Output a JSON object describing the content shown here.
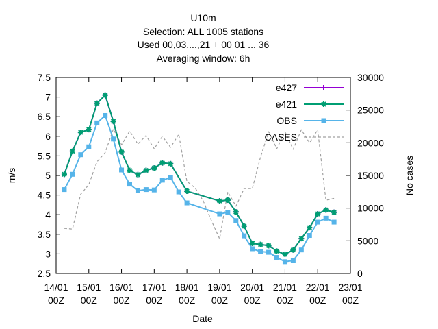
{
  "chart_data": {
    "type": "line",
    "title_lines": [
      "U10m",
      "Selection: ALL   1005 stations",
      "Used  00,03,...,21  + 00 01 ... 36",
      "Averaging window:  6h"
    ],
    "xlabel": "Date",
    "ylabel": "m/s",
    "y2label": "No cases",
    "xlim": [
      0,
      9
    ],
    "ylim": [
      2.5,
      7.5
    ],
    "y2lim": [
      0,
      30000
    ],
    "x_ticks": [
      {
        "x": 0,
        "l1": "14/01",
        "l2": "00Z"
      },
      {
        "x": 1,
        "l1": "15/01",
        "l2": "00Z"
      },
      {
        "x": 2,
        "l1": "16/01",
        "l2": "00Z"
      },
      {
        "x": 3,
        "l1": "17/01",
        "l2": "00Z"
      },
      {
        "x": 4,
        "l1": "18/01",
        "l2": "00Z"
      },
      {
        "x": 5,
        "l1": "19/01",
        "l2": "00Z"
      },
      {
        "x": 6,
        "l1": "20/01",
        "l2": "00Z"
      },
      {
        "x": 7,
        "l1": "21/01",
        "l2": "00Z"
      },
      {
        "x": 8,
        "l1": "22/01",
        "l2": "00Z"
      },
      {
        "x": 9,
        "l1": "23/01",
        "l2": "00Z"
      }
    ],
    "y_ticks": [
      {
        "v": 2.5,
        "label": "2.5"
      },
      {
        "v": 3,
        "label": "3"
      },
      {
        "v": 3.5,
        "label": "3.5"
      },
      {
        "v": 4,
        "label": "4"
      },
      {
        "v": 4.5,
        "label": "4.5"
      },
      {
        "v": 5,
        "label": "5"
      },
      {
        "v": 5.5,
        "label": "5.5"
      },
      {
        "v": 6,
        "label": "6"
      },
      {
        "v": 6.5,
        "label": "6.5"
      },
      {
        "v": 7,
        "label": "7"
      },
      {
        "v": 7.5,
        "label": "7.5"
      }
    ],
    "y2_ticks": [
      {
        "v": 0,
        "label": "0"
      },
      {
        "v": 5000,
        "label": "5000"
      },
      {
        "v": 10000,
        "label": "10000"
      },
      {
        "v": 15000,
        "label": "15000"
      },
      {
        "v": 20000,
        "label": "20000"
      },
      {
        "v": 25000,
        "label": "25000"
      },
      {
        "v": 30000,
        "label": "30000"
      }
    ],
    "legend_position": "top-right",
    "series": [
      {
        "name": "e427",
        "axis": "y",
        "color": "#9400d3",
        "style": "solid",
        "marker": "plus",
        "points": [
          [
            0.25,
            5.03
          ],
          [
            0.5,
            5.62
          ],
          [
            0.75,
            6.1
          ],
          [
            1.0,
            6.17
          ],
          [
            1.25,
            6.84
          ],
          [
            1.5,
            7.05
          ],
          [
            1.75,
            6.38
          ],
          [
            2.0,
            5.6
          ],
          [
            2.25,
            5.13
          ],
          [
            2.5,
            5.02
          ],
          [
            2.75,
            5.13
          ],
          [
            3.0,
            5.19
          ],
          [
            3.25,
            5.32
          ],
          [
            3.5,
            5.3
          ],
          [
            4.0,
            4.6
          ],
          [
            5.0,
            4.35
          ],
          [
            5.25,
            4.37
          ],
          [
            5.5,
            4.07
          ],
          [
            5.75,
            3.71
          ],
          [
            6.0,
            3.27
          ],
          [
            6.25,
            3.24
          ],
          [
            6.5,
            3.21
          ],
          [
            6.75,
            3.07
          ],
          [
            7.0,
            2.99
          ],
          [
            7.25,
            3.1
          ],
          [
            7.5,
            3.39
          ],
          [
            7.75,
            3.67
          ],
          [
            8.0,
            4.02
          ],
          [
            8.25,
            4.12
          ],
          [
            8.5,
            4.06
          ]
        ]
      },
      {
        "name": "e421",
        "axis": "y",
        "color": "#009e73",
        "style": "solid",
        "marker": "star",
        "points": [
          [
            0.25,
            5.03
          ],
          [
            0.5,
            5.62
          ],
          [
            0.75,
            6.1
          ],
          [
            1.0,
            6.17
          ],
          [
            1.25,
            6.84
          ],
          [
            1.5,
            7.05
          ],
          [
            1.75,
            6.38
          ],
          [
            2.0,
            5.6
          ],
          [
            2.25,
            5.13
          ],
          [
            2.5,
            5.02
          ],
          [
            2.75,
            5.13
          ],
          [
            3.0,
            5.19
          ],
          [
            3.25,
            5.32
          ],
          [
            3.5,
            5.3
          ],
          [
            4.0,
            4.6
          ],
          [
            5.0,
            4.35
          ],
          [
            5.25,
            4.37
          ],
          [
            5.5,
            4.07
          ],
          [
            5.75,
            3.71
          ],
          [
            6.0,
            3.27
          ],
          [
            6.25,
            3.24
          ],
          [
            6.5,
            3.21
          ],
          [
            6.75,
            3.07
          ],
          [
            7.0,
            2.99
          ],
          [
            7.25,
            3.1
          ],
          [
            7.5,
            3.39
          ],
          [
            7.75,
            3.67
          ],
          [
            8.0,
            4.02
          ],
          [
            8.25,
            4.12
          ],
          [
            8.5,
            4.06
          ]
        ]
      },
      {
        "name": "OBS",
        "axis": "y",
        "color": "#56b4e9",
        "style": "solid",
        "marker": "square",
        "points": [
          [
            0.25,
            4.64
          ],
          [
            0.5,
            5.03
          ],
          [
            0.75,
            5.53
          ],
          [
            1.0,
            5.73
          ],
          [
            1.25,
            6.34
          ],
          [
            1.5,
            6.53
          ],
          [
            1.75,
            5.93
          ],
          [
            2.0,
            5.14
          ],
          [
            2.25,
            4.78
          ],
          [
            2.5,
            4.61
          ],
          [
            2.75,
            4.64
          ],
          [
            3.0,
            4.63
          ],
          [
            3.25,
            4.88
          ],
          [
            3.5,
            4.95
          ],
          [
            3.75,
            4.58
          ],
          [
            4.0,
            4.3
          ],
          [
            5.0,
            4.02
          ],
          [
            5.25,
            4.06
          ],
          [
            5.5,
            3.85
          ],
          [
            5.75,
            3.46
          ],
          [
            6.0,
            3.13
          ],
          [
            6.25,
            3.06
          ],
          [
            6.5,
            3.04
          ],
          [
            6.75,
            2.91
          ],
          [
            7.0,
            2.8
          ],
          [
            7.25,
            2.83
          ],
          [
            7.5,
            3.1
          ],
          [
            7.75,
            3.47
          ],
          [
            8.0,
            3.81
          ],
          [
            8.25,
            3.91
          ],
          [
            8.5,
            3.81
          ]
        ]
      },
      {
        "name": "CASES",
        "axis": "y2",
        "color": "#a0a0a0",
        "style": "dashed",
        "marker": "none",
        "points": [
          [
            0.25,
            6900
          ],
          [
            0.5,
            6800
          ],
          [
            0.75,
            12100
          ],
          [
            1.0,
            13600
          ],
          [
            1.25,
            17100
          ],
          [
            1.5,
            18500
          ],
          [
            1.75,
            22100
          ],
          [
            2.0,
            19700
          ],
          [
            2.25,
            21800
          ],
          [
            2.5,
            19800
          ],
          [
            2.75,
            21100
          ],
          [
            3.0,
            19100
          ],
          [
            3.25,
            21000
          ],
          [
            3.5,
            19300
          ],
          [
            3.75,
            21300
          ],
          [
            4.0,
            14100
          ],
          [
            4.25,
            13100
          ],
          [
            4.5,
            11100
          ],
          [
            4.75,
            8100
          ],
          [
            5.0,
            5300
          ],
          [
            5.25,
            12500
          ],
          [
            5.5,
            10300
          ],
          [
            5.75,
            13000
          ],
          [
            6.0,
            13000
          ],
          [
            6.25,
            17800
          ],
          [
            6.5,
            21700
          ],
          [
            6.75,
            19100
          ],
          [
            7.0,
            21700
          ],
          [
            7.25,
            19000
          ],
          [
            7.5,
            22000
          ],
          [
            7.75,
            20000
          ],
          [
            8.0,
            22000
          ],
          [
            8.25,
            11200
          ],
          [
            8.5,
            11500
          ]
        ]
      }
    ]
  }
}
